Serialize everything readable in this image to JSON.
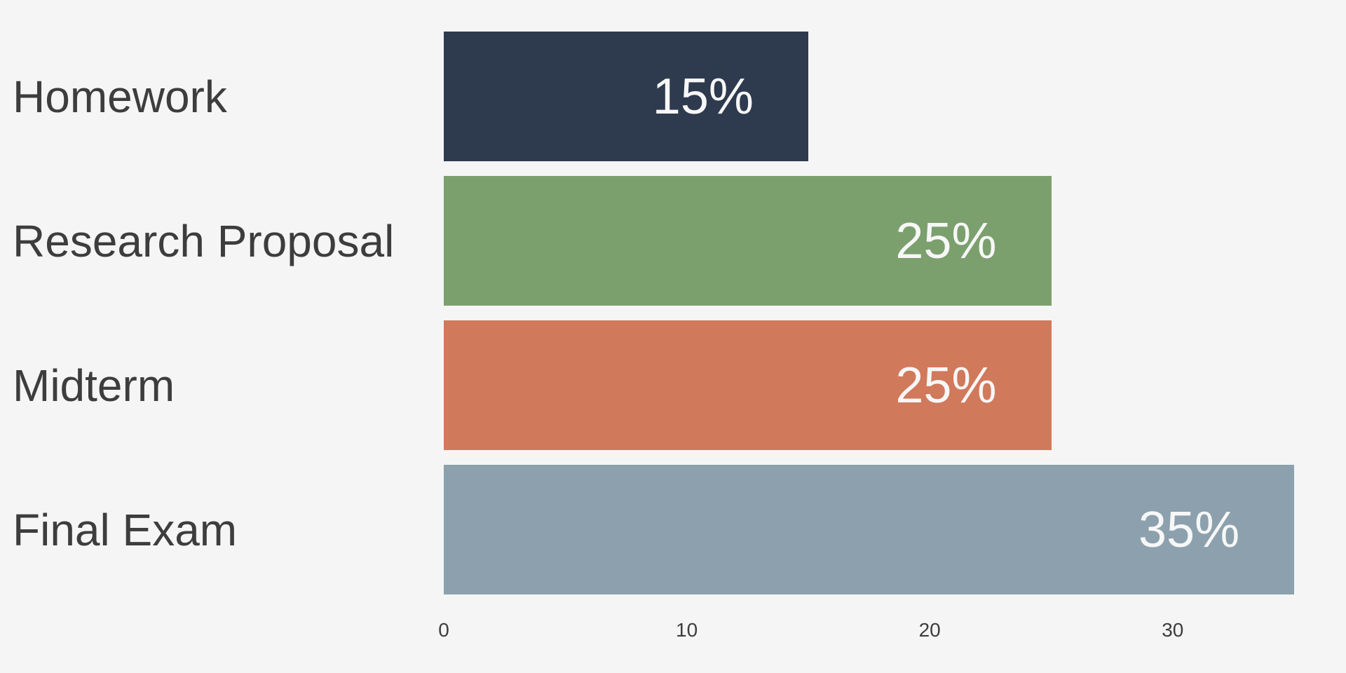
{
  "chart_data": {
    "type": "bar",
    "orientation": "horizontal",
    "title": "",
    "xlabel": "",
    "ylabel": "",
    "categories": [
      "Homework",
      "Research Proposal",
      "Midterm",
      "Final Exam"
    ],
    "values": [
      15,
      25,
      25,
      35
    ],
    "value_labels": [
      "15%",
      "25%",
      "25%",
      "35%"
    ],
    "bar_colors": [
      "#2e3a4e",
      "#7ba06e",
      "#d1795b",
      "#8ca1ad"
    ],
    "x_ticks": [
      "0",
      "10",
      "20",
      "30"
    ],
    "x_tick_values": [
      0,
      10,
      20,
      30
    ],
    "xlim": [
      0,
      37.1
    ],
    "grid": false,
    "legend": false,
    "background_color": "#f5f5f5",
    "value_label_color": "#f7f7f7",
    "category_label_color": "#3d3d3d",
    "tick_label_color": "#3d3d3d"
  }
}
